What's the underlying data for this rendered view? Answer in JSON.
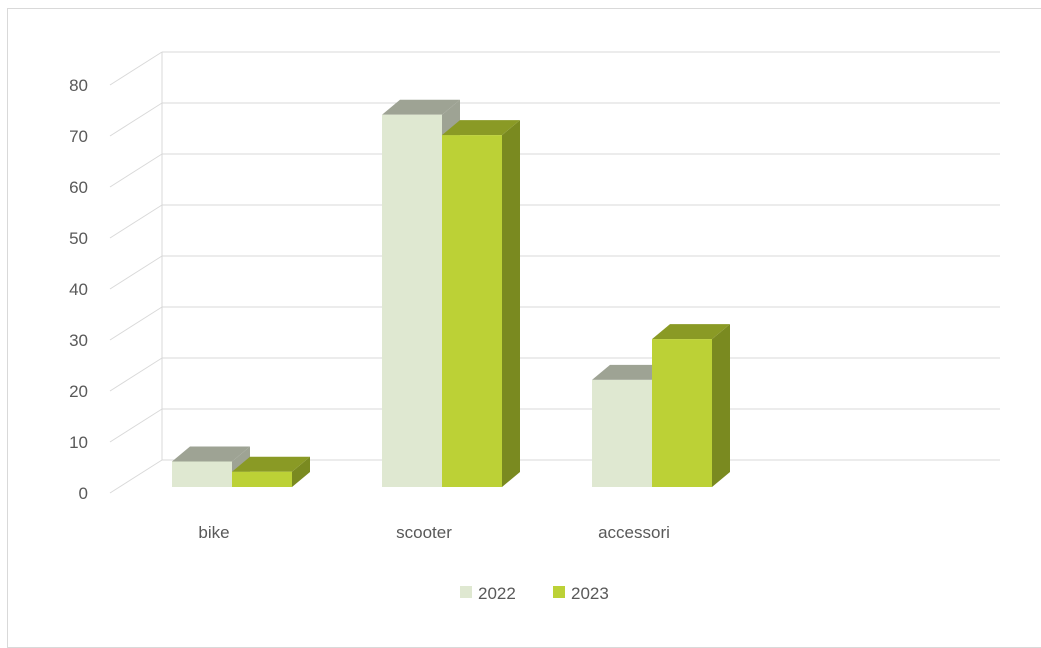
{
  "chart_data": {
    "type": "bar",
    "three_d": true,
    "categories": [
      "bike",
      "scooter",
      "accessori"
    ],
    "series": [
      {
        "name": "2022",
        "values": [
          5,
          73,
          21
        ],
        "color": "#dfe8d1",
        "top_color": "#9ea394",
        "side_color": "#9ea394"
      },
      {
        "name": "2023",
        "values": [
          3,
          69,
          29
        ],
        "color": "#bcd136",
        "top_color": "#8a9a25",
        "side_color": "#7a8a20"
      }
    ],
    "ylim": [
      0,
      80
    ],
    "yticks": [
      "0",
      "10",
      "20",
      "30",
      "40",
      "50",
      "60",
      "70",
      "80"
    ],
    "grid": true,
    "legend_position": "bottom"
  }
}
